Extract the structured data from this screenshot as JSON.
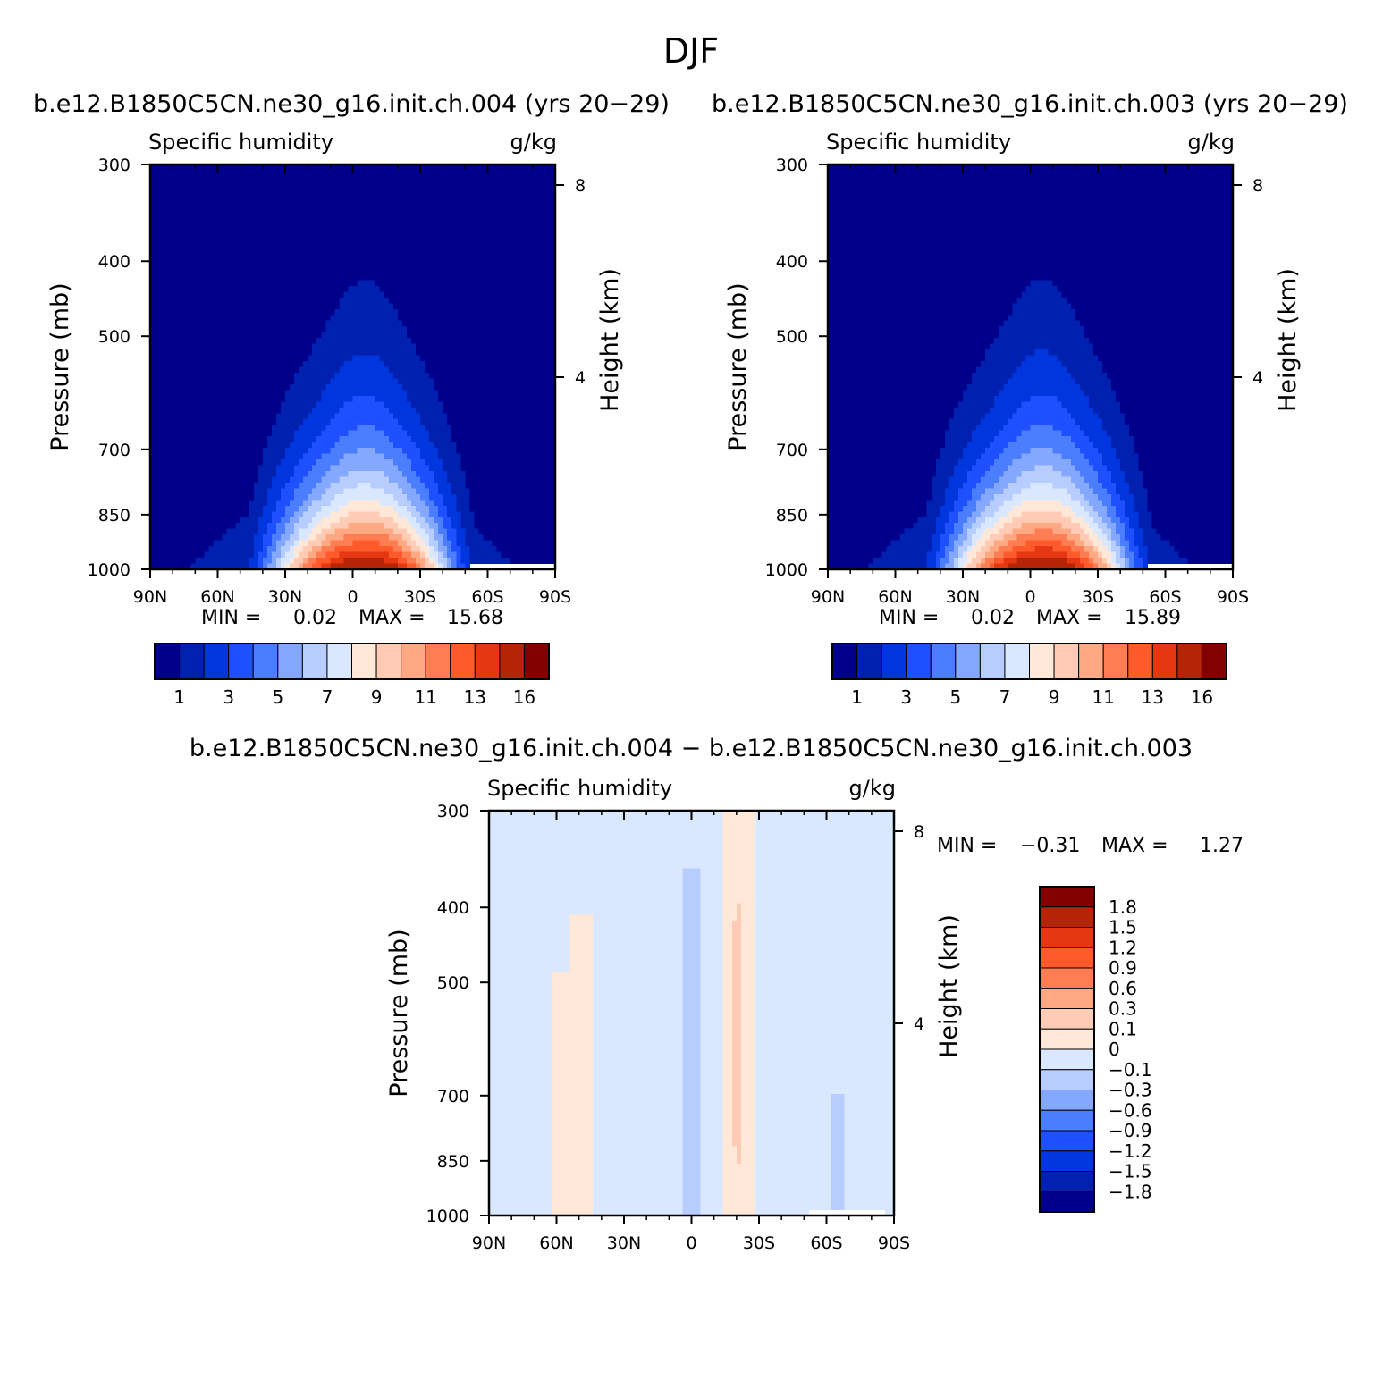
{
  "figure": {
    "title": "DJF"
  },
  "colors": {
    "seq14": [
      "#00008b",
      "#0020b0",
      "#0036de",
      "#1e50ff",
      "#4a7eff",
      "#85a8ff",
      "#b8cdff",
      "#d9e8ff",
      "#ffe8d8",
      "#ffcbb4",
      "#ffa884",
      "#ff7d53",
      "#ff5a2c",
      "#e53712",
      "#b52406",
      "#820000"
    ],
    "div16": [
      "#00008b",
      "#0020b0",
      "#0036de",
      "#1e50ff",
      "#4a7eff",
      "#85a8ff",
      "#b8cdff",
      "#d9e8ff",
      "#ffe8d8",
      "#ffcbb4",
      "#ffa884",
      "#ff7d53",
      "#ff5a2c",
      "#e53712",
      "#b52406",
      "#820000"
    ]
  },
  "chart_data": [
    {
      "type": "heatmap",
      "title": "b.e12.B1850C5CN.ne30_g16.init.ch.004 (yrs 20-29)",
      "subtitle_left": "Specific humidity",
      "subtitle_right": "g/kg",
      "xlabel": "",
      "ylabel": "Pressure (mb)",
      "y2label": "Height (km)",
      "x_ticks": [
        "90N",
        "60N",
        "30N",
        "0",
        "30S",
        "60S",
        "90S"
      ],
      "y_ticks": [
        "300",
        "400",
        "500",
        "700",
        "850",
        "1000"
      ],
      "y_tick_values": [
        300,
        400,
        500,
        700,
        850,
        1000
      ],
      "y2_ticks": [
        "8",
        "4"
      ],
      "y2_tick_values": [
        8,
        4
      ],
      "ylim": [
        1000,
        300
      ],
      "log_y": true,
      "stats": {
        "min_label": "MIN =",
        "min": "0.02",
        "max_label": "MAX =",
        "max": "15.68"
      },
      "levels": [
        1,
        2,
        3,
        4,
        5,
        6,
        7,
        8,
        9,
        10,
        11,
        12,
        13,
        14,
        16
      ],
      "colorbar_labels": [
        "1",
        "3",
        "5",
        "7",
        "9",
        "11",
        "13",
        "16"
      ],
      "peak_value": 15.68
    },
    {
      "type": "heatmap",
      "title": "b.e12.B1850C5CN.ne30_g16.init.ch.003 (yrs 20-29)",
      "subtitle_left": "Specific humidity",
      "subtitle_right": "g/kg",
      "xlabel": "",
      "ylabel": "Pressure (mb)",
      "y2label": "Height (km)",
      "x_ticks": [
        "90N",
        "60N",
        "30N",
        "0",
        "30S",
        "60S",
        "90S"
      ],
      "y_ticks": [
        "300",
        "400",
        "500",
        "700",
        "850",
        "1000"
      ],
      "y_tick_values": [
        300,
        400,
        500,
        700,
        850,
        1000
      ],
      "y2_ticks": [
        "8",
        "4"
      ],
      "y2_tick_values": [
        8,
        4
      ],
      "ylim": [
        1000,
        300
      ],
      "log_y": true,
      "stats": {
        "min_label": "MIN =",
        "min": "0.02",
        "max_label": "MAX =",
        "max": "15.89"
      },
      "levels": [
        1,
        2,
        3,
        4,
        5,
        6,
        7,
        8,
        9,
        10,
        11,
        12,
        13,
        14,
        16
      ],
      "colorbar_labels": [
        "1",
        "3",
        "5",
        "7",
        "9",
        "11",
        "13",
        "16"
      ],
      "peak_value": 15.89
    },
    {
      "type": "heatmap",
      "title": "b.e12.B1850C5CN.ne30_g16.init.ch.004 - b.e12.B1850C5CN.ne30_g16.init.ch.003",
      "subtitle_left": "Specific humidity",
      "subtitle_right": "g/kg",
      "xlabel": "",
      "ylabel": "Pressure (mb)",
      "y2label": "Height (km)",
      "x_ticks": [
        "90N",
        "60N",
        "30N",
        "0",
        "30S",
        "60S",
        "90S"
      ],
      "y_ticks": [
        "300",
        "400",
        "500",
        "700",
        "850",
        "1000"
      ],
      "y_tick_values": [
        300,
        400,
        500,
        700,
        850,
        1000
      ],
      "y2_ticks": [
        "8",
        "4"
      ],
      "y2_tick_values": [
        8,
        4
      ],
      "ylim": [
        1000,
        300
      ],
      "log_y": true,
      "stats": {
        "min_label": "MIN =",
        "min": "-0.31",
        "max_label": "MAX =",
        "max": "1.27"
      },
      "levels": [
        -1.8,
        -1.5,
        -1.2,
        -0.9,
        -0.6,
        -0.3,
        -0.1,
        0,
        0.1,
        0.3,
        0.6,
        0.9,
        1.2,
        1.5,
        1.8
      ],
      "colorbar_labels": [
        "1.8",
        "1.5",
        "1.2",
        "0.9",
        "0.6",
        "0.3",
        "0.1",
        "0",
        "-0.1",
        "-0.3",
        "-0.6",
        "-0.9",
        "-1.2",
        "-1.5",
        "-1.8"
      ]
    }
  ]
}
